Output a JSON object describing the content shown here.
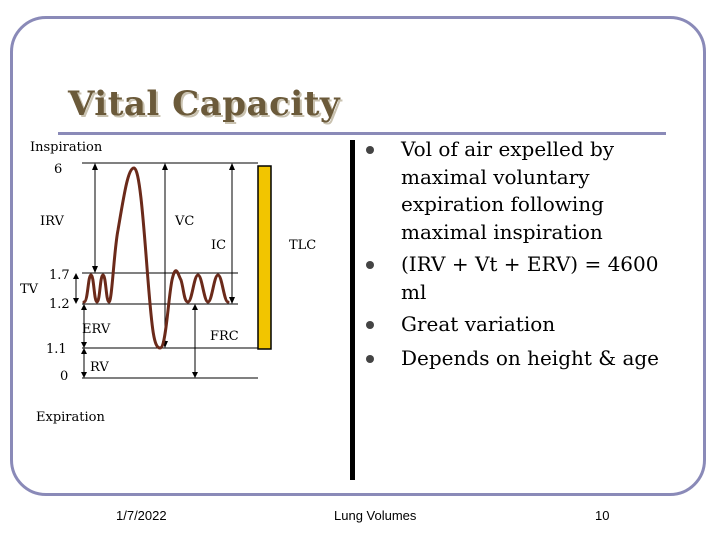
{
  "slide": {
    "title": "Vital Capacity",
    "footer": {
      "date": "1/7/2022",
      "center": "Lung Volumes",
      "page": "10"
    }
  },
  "diagram": {
    "labels": {
      "inspiration": "Inspiration",
      "expiration": "Expiration",
      "irv": "IRV",
      "vc": "VC",
      "ic": "IC",
      "tlc": "TLC",
      "tv": "TV",
      "erv": "ERV",
      "frc": "FRC",
      "rv": "RV"
    },
    "scale_values": [
      "6",
      "1.7",
      "1.2",
      "1.1",
      "0"
    ]
  },
  "bullets": [
    "Vol of air expelled by maximal voluntary expiration following maximal inspiration",
    "(IRV + Vt + ERV) = 4600 ml",
    "Great variation",
    "Depends on height & age"
  ],
  "colors": {
    "frame": "#8a8ab8",
    "title": "#6b5a3a",
    "curve": "#6b2a1a",
    "tlc_bar": "#f2c500"
  }
}
